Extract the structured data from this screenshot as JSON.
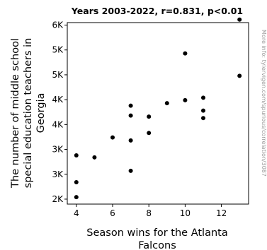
{
  "chart_data": {
    "type": "scatter",
    "title": "Years 2003-2022, r=0.831, p<0.01",
    "xlabel_lines": [
      "Season wins for the Atlanta",
      "Falcons"
    ],
    "ylabel_lines": [
      "The number of middle school",
      "special education teachers in",
      "Georgia"
    ],
    "watermark": "More info: tylervigen.com/spurious/correlation/3087",
    "xlim": [
      3.5,
      13.5
    ],
    "ylim": [
      2200,
      5850
    ],
    "x_ticks": [
      4,
      6,
      8,
      10,
      12
    ],
    "x_tick_labels": [
      "4",
      "6",
      "8",
      "10",
      "12"
    ],
    "y_ticks": [
      2300,
      2800,
      3300,
      3800,
      4300,
      4800,
      5300,
      5800
    ],
    "y_tick_labels": [
      "2K",
      "3K",
      "3K",
      "4K",
      "4K",
      "5K",
      "5K",
      "6K"
    ],
    "grid": false,
    "marker_color": "#000000",
    "x": [
      4,
      4,
      4,
      5,
      6,
      7,
      7,
      7,
      7,
      8,
      8,
      9,
      10,
      10,
      11,
      11,
      11,
      13,
      13
    ],
    "y": [
      2340,
      2640,
      3180,
      3140,
      3540,
      3480,
      2870,
      3980,
      4180,
      3630,
      3960,
      4230,
      4290,
      5230,
      4080,
      3930,
      4340,
      4780,
      5910
    ]
  }
}
